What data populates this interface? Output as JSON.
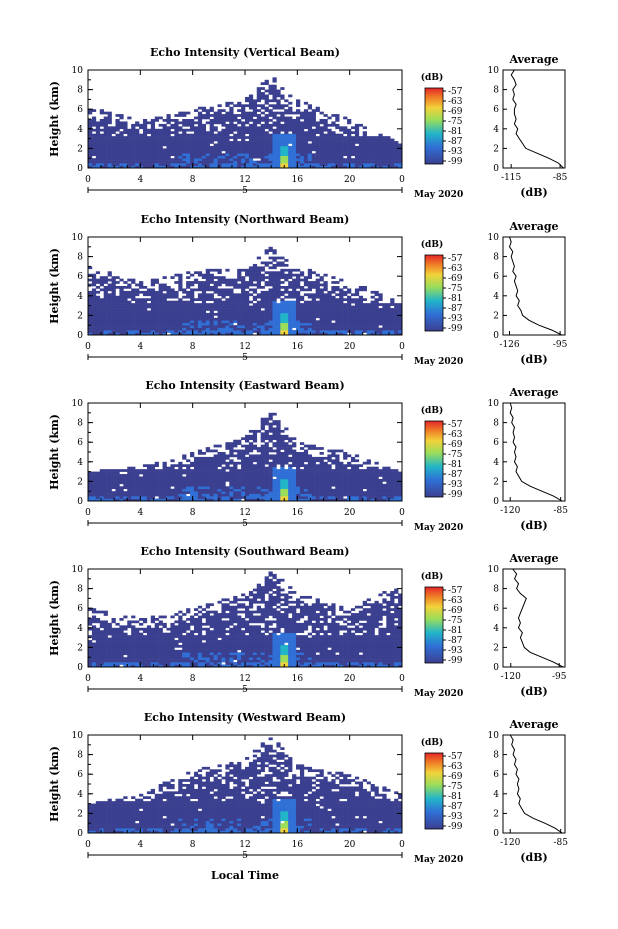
{
  "figure": {
    "xlabel": "Local Time",
    "x_ticks": [
      "0",
      "4",
      "8",
      "12",
      "16",
      "20",
      "0"
    ],
    "date_marker": "5",
    "month_label": "May 2020",
    "ylabel": "Height (km)",
    "y_ticks": [
      "0",
      "2",
      "4",
      "6",
      "8",
      "10"
    ],
    "colorbar_unit": "(dB)",
    "colorbar_ticks": [
      "-57",
      "-63",
      "-69",
      "-75",
      "-81",
      "-87",
      "-93",
      "-99"
    ],
    "colors": {
      "low": "#3b3f8f",
      "mid1": "#2f6fd6",
      "mid2": "#22b5c8",
      "mid3": "#9bdd5a",
      "high1": "#f2d23a",
      "high2": "#ef7a26",
      "top": "#e5262a"
    },
    "avg_title": "Average",
    "avg_xlabel": "(dB)"
  },
  "chart_data": [
    {
      "type": "heatmap",
      "title": "Echo Intensity (Vertical Beam)",
      "xlabel": "Local Time",
      "ylabel": "Height (km)",
      "xlim": [
        0,
        24
      ],
      "ylim": [
        0,
        10
      ],
      "clim": [
        -99,
        -57
      ],
      "description_values": {
        "max_echo_height_km": [
          [
            0,
            6.2
          ],
          [
            4,
            5.0
          ],
          [
            8,
            6.0
          ],
          [
            12,
            7.0
          ],
          [
            14,
            9.5
          ],
          [
            16,
            7.0
          ],
          [
            20,
            5.0
          ],
          [
            24,
            2.5
          ]
        ],
        "peak_time_h": 15
      }
    },
    {
      "type": "line",
      "title": "Average",
      "xlabel": "(dB)",
      "ylabel": "",
      "x_ticks": [
        "-115",
        "-85"
      ],
      "xlim": [
        -120,
        -82
      ],
      "ylim": [
        0,
        10
      ],
      "series": [
        {
          "x": [
            -83,
            -86,
            -92,
            -99,
            -106,
            -108,
            -110,
            -112,
            -111,
            -113,
            -112,
            -113,
            -113,
            -112,
            -114,
            -113,
            -114,
            -112,
            -113,
            -115,
            -113
          ],
          "y": [
            0,
            0.5,
            1.0,
            1.5,
            2.0,
            2.5,
            3.0,
            3.5,
            4.0,
            4.5,
            5.0,
            5.5,
            6.0,
            6.5,
            7.0,
            7.5,
            8.0,
            8.5,
            9.0,
            9.5,
            10.0
          ]
        }
      ]
    },
    {
      "type": "heatmap",
      "title": "Echo Intensity (Northward Beam)",
      "xlabel": "Local Time",
      "ylabel": "Height (km)",
      "xlim": [
        0,
        24
      ],
      "ylim": [
        0,
        10
      ],
      "clim": [
        -99,
        -57
      ],
      "description_values": {
        "max_echo_height_km": [
          [
            0,
            7.0
          ],
          [
            4,
            5.5
          ],
          [
            8,
            6.5
          ],
          [
            12,
            7.0
          ],
          [
            14,
            9.0
          ],
          [
            16,
            7.0
          ],
          [
            20,
            5.5
          ],
          [
            24,
            3.5
          ]
        ],
        "peak_time_h": 15
      }
    },
    {
      "type": "line",
      "title": "Average",
      "xlabel": "(dB)",
      "ylabel": "",
      "x_ticks": [
        "-126",
        "-95"
      ],
      "xlim": [
        -130,
        -92
      ],
      "ylim": [
        0,
        10
      ],
      "series": [
        {
          "x": [
            -94,
            -100,
            -108,
            -114,
            -118,
            -119,
            -121,
            -120,
            -122,
            -121,
            -122,
            -123,
            -122,
            -124,
            -123,
            -124,
            -125,
            -124,
            -126,
            -125,
            -126
          ],
          "y": [
            0,
            0.5,
            1.0,
            1.5,
            2.0,
            2.5,
            3.0,
            3.5,
            4.0,
            4.5,
            5.0,
            5.5,
            6.0,
            6.5,
            7.0,
            7.5,
            8.0,
            8.5,
            9.0,
            9.5,
            10.0
          ]
        }
      ]
    },
    {
      "type": "heatmap",
      "title": "Echo Intensity (Eastward Beam)",
      "xlabel": "Local Time",
      "ylabel": "Height (km)",
      "xlim": [
        0,
        24
      ],
      "ylim": [
        0,
        10
      ],
      "clim": [
        -99,
        -57
      ],
      "description_values": {
        "max_echo_height_km": [
          [
            0,
            3.0
          ],
          [
            4,
            3.5
          ],
          [
            8,
            5.0
          ],
          [
            12,
            6.5
          ],
          [
            14,
            9.5
          ],
          [
            16,
            6.0
          ],
          [
            20,
            5.0
          ],
          [
            24,
            3.0
          ]
        ],
        "peak_time_h": 15
      }
    },
    {
      "type": "line",
      "title": "Average",
      "xlabel": "(dB)",
      "ylabel": "",
      "x_ticks": [
        "-120",
        "-85"
      ],
      "xlim": [
        -125,
        -82
      ],
      "ylim": [
        0,
        10
      ],
      "series": [
        {
          "x": [
            -84,
            -90,
            -98,
            -106,
            -112,
            -114,
            -116,
            -115,
            -117,
            -116,
            -117,
            -116,
            -118,
            -117,
            -118,
            -117,
            -119,
            -118,
            -120,
            -119,
            -120
          ],
          "y": [
            0,
            0.5,
            1.0,
            1.5,
            2.0,
            2.5,
            3.0,
            3.5,
            4.0,
            4.5,
            5.0,
            5.5,
            6.0,
            6.5,
            7.0,
            7.5,
            8.0,
            8.5,
            9.0,
            9.5,
            10.0
          ]
        }
      ]
    },
    {
      "type": "heatmap",
      "title": "Echo Intensity (Southward Beam)",
      "xlabel": "Local Time",
      "ylabel": "Height (km)",
      "xlim": [
        0,
        24
      ],
      "ylim": [
        0,
        10
      ],
      "clim": [
        -99,
        -57
      ],
      "description_values": {
        "max_echo_height_km": [
          [
            0,
            6.0
          ],
          [
            4,
            5.0
          ],
          [
            8,
            6.0
          ],
          [
            12,
            7.5
          ],
          [
            14,
            10.0
          ],
          [
            16,
            7.5
          ],
          [
            20,
            6.0
          ],
          [
            24,
            8.5
          ]
        ],
        "peak_time_h": 15
      }
    },
    {
      "type": "line",
      "title": "Average",
      "xlabel": "(dB)",
      "ylabel": "",
      "x_ticks": [
        "-120",
        "-95"
      ],
      "xlim": [
        -124,
        -92
      ],
      "ylim": [
        0,
        10
      ],
      "series": [
        {
          "x": [
            -93,
            -98,
            -104,
            -110,
            -113,
            -114,
            -115,
            -114,
            -116,
            -115,
            -116,
            -115,
            -114,
            -113,
            -112,
            -115,
            -117,
            -116,
            -118,
            -117,
            -119
          ],
          "y": [
            0,
            0.5,
            1.0,
            1.5,
            2.0,
            2.5,
            3.0,
            3.5,
            4.0,
            4.5,
            5.0,
            5.5,
            6.0,
            6.5,
            7.0,
            7.5,
            8.0,
            8.5,
            9.0,
            9.5,
            10.0
          ]
        }
      ]
    },
    {
      "type": "heatmap",
      "title": "Echo Intensity (Westward Beam)",
      "xlabel": "Local Time",
      "ylabel": "Height (km)",
      "xlim": [
        0,
        24
      ],
      "ylim": [
        0,
        10
      ],
      "clim": [
        -99,
        -57
      ],
      "description_values": {
        "max_echo_height_km": [
          [
            0,
            3.0
          ],
          [
            4,
            4.0
          ],
          [
            8,
            6.5
          ],
          [
            12,
            7.5
          ],
          [
            14,
            10.0
          ],
          [
            16,
            7.0
          ],
          [
            20,
            6.0
          ],
          [
            24,
            4.0
          ]
        ],
        "peak_time_h": 15
      }
    },
    {
      "type": "line",
      "title": "Average",
      "xlabel": "(dB)",
      "ylabel": "",
      "x_ticks": [
        "-120",
        "-85"
      ],
      "xlim": [
        -125,
        -82
      ],
      "ylim": [
        0,
        10
      ],
      "series": [
        {
          "x": [
            -84,
            -89,
            -96,
            -104,
            -110,
            -112,
            -114,
            -113,
            -115,
            -114,
            -115,
            -114,
            -116,
            -115,
            -117,
            -116,
            -118,
            -117,
            -119,
            -118,
            -120
          ],
          "y": [
            0,
            0.5,
            1.0,
            1.5,
            2.0,
            2.5,
            3.0,
            3.5,
            4.0,
            4.5,
            5.0,
            5.5,
            6.0,
            6.5,
            7.0,
            7.5,
            8.0,
            8.5,
            9.0,
            9.5,
            10.0
          ]
        }
      ]
    }
  ]
}
